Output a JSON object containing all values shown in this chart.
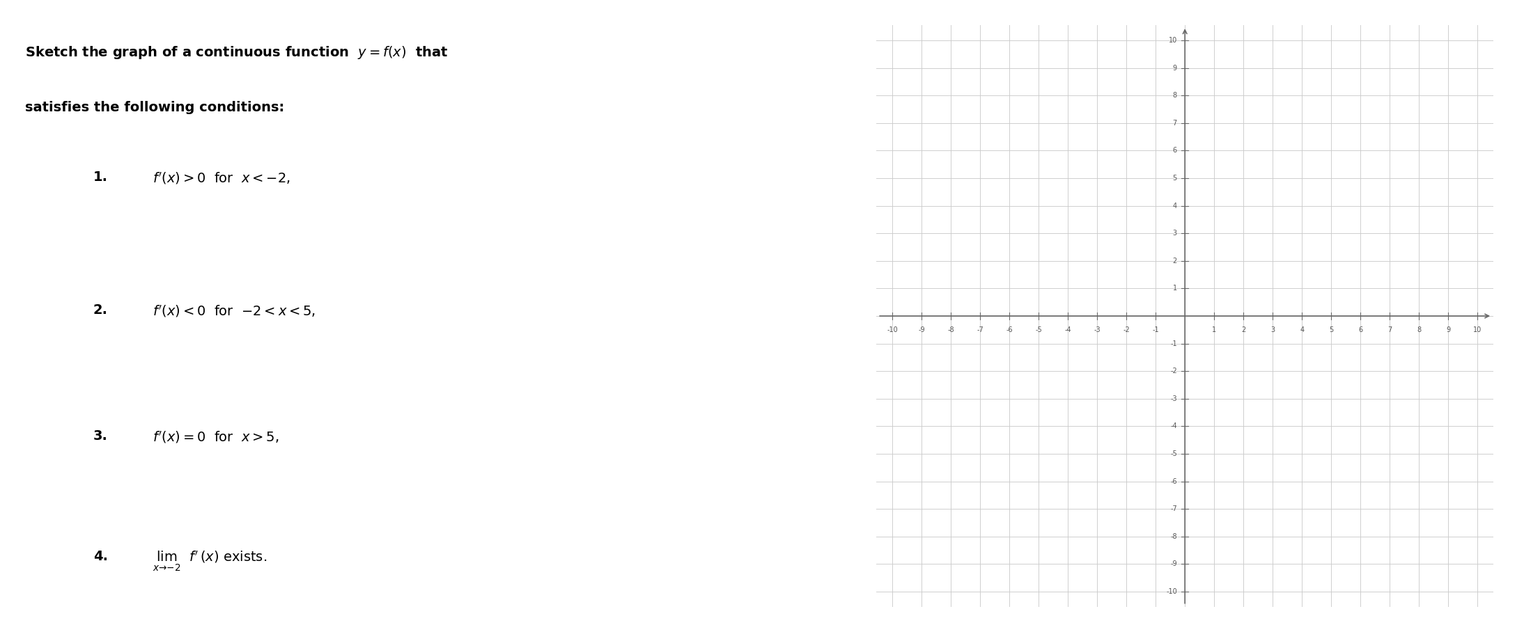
{
  "title_line1": "Sketch the graph of a continuous function  $y = f(x)$  that",
  "title_line2": "satisfies the following conditions:",
  "condition1_num": "1.",
  "condition1_text": "$f'(x) > 0$  for  $x < -2,$",
  "condition2_num": "2.",
  "condition2_text": "$f'(x) < 0$  for  $-2 < x < 5,$",
  "condition3_num": "3.",
  "condition3_text": "$f'(x) = 0$  for  $x > 5,$",
  "condition4_num": "4.",
  "condition4_text": "$\\lim_{x \\to -2}$  $f'(x)$ exists.",
  "xmin": -10,
  "xmax": 10,
  "ymin": -10,
  "ymax": 10,
  "grid_color": "#cccccc",
  "axis_color": "#666666",
  "tick_label_color": "#555555",
  "background_color": "#ffffff",
  "tick_fontsize": 7.0,
  "text_fontsize": 14,
  "title_fontsize": 14
}
